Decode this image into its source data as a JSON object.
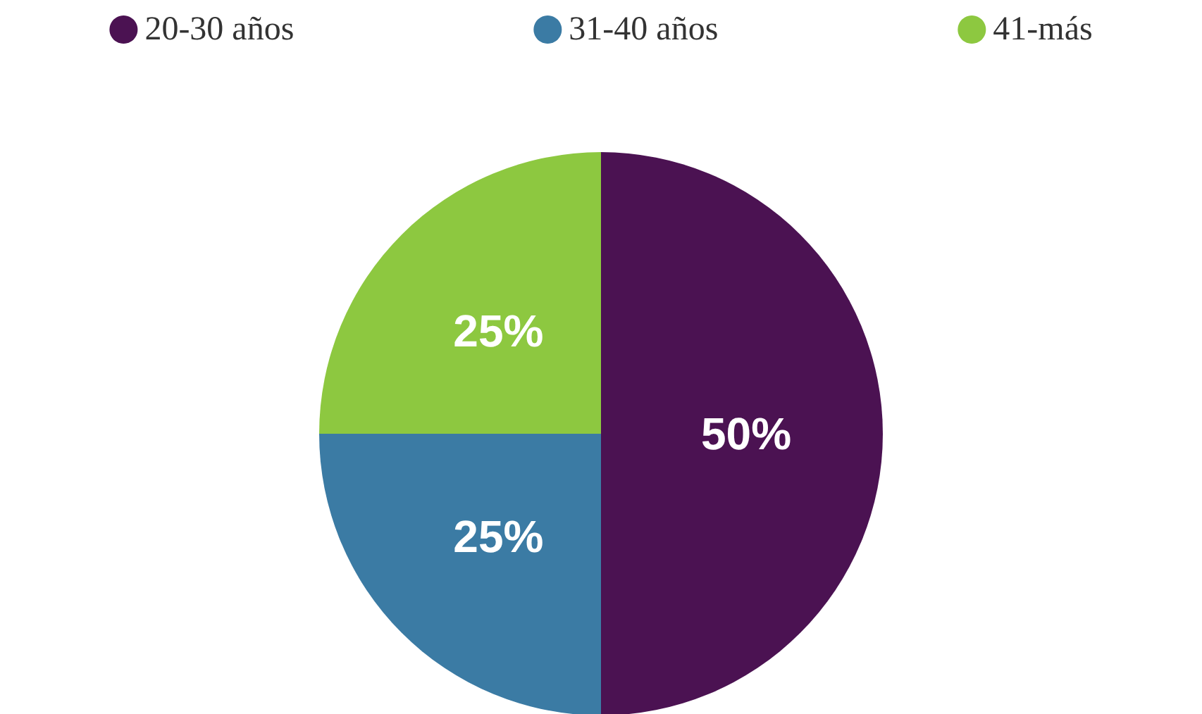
{
  "chart_data": {
    "type": "pie",
    "categories": [
      "20-30 años",
      "31-40 años",
      "41-más"
    ],
    "values": [
      50,
      25,
      25
    ],
    "colors": [
      "#4b1252",
      "#3b7ba4",
      "#8dc840"
    ],
    "value_labels": [
      "50%",
      "25%",
      "25%"
    ],
    "legend": "top"
  }
}
